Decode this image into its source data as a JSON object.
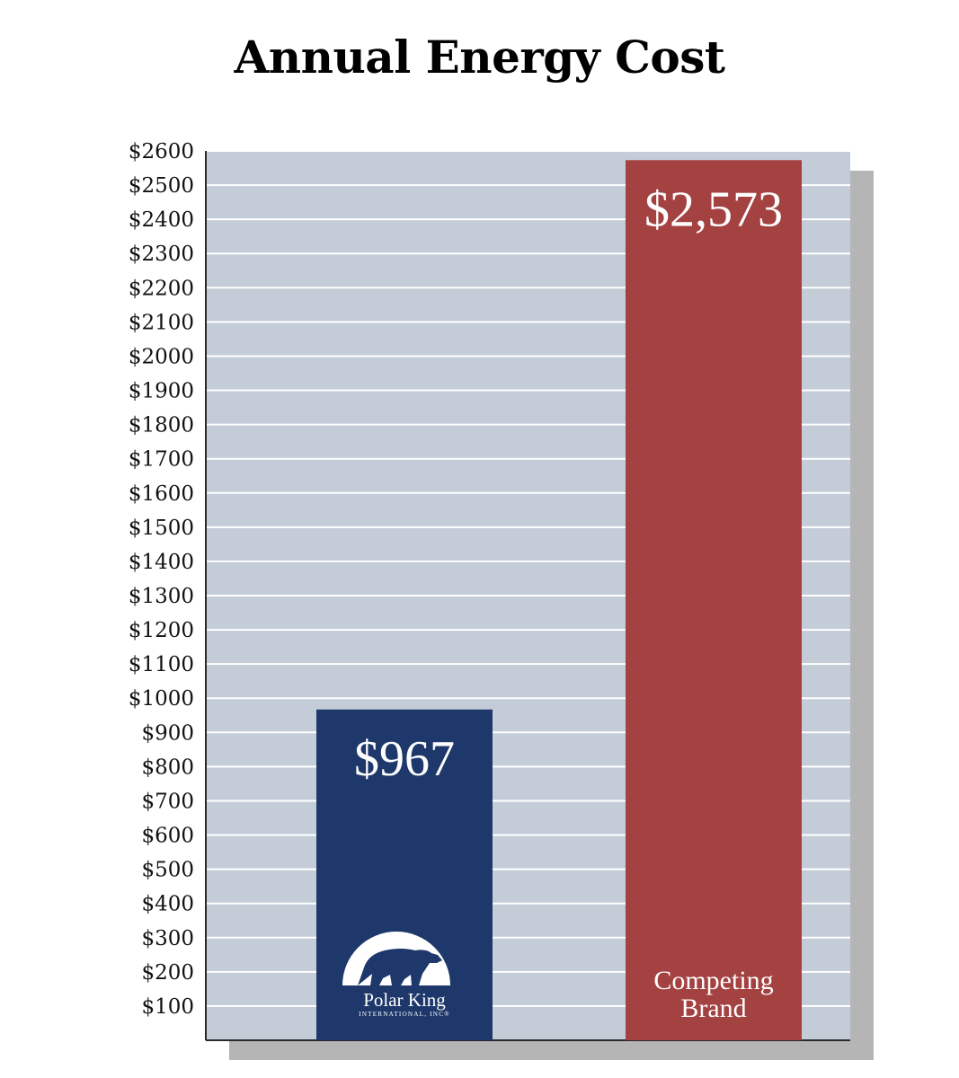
{
  "chart_data": {
    "type": "bar",
    "title": "Annual Energy Cost",
    "xlabel": "",
    "ylabel": "",
    "ylim": [
      0,
      2600
    ],
    "grid": true,
    "yticks": [
      {
        "value": 100,
        "label": "$100"
      },
      {
        "value": 200,
        "label": "$200"
      },
      {
        "value": 300,
        "label": "$300"
      },
      {
        "value": 400,
        "label": "$400"
      },
      {
        "value": 500,
        "label": "$500"
      },
      {
        "value": 600,
        "label": "$600"
      },
      {
        "value": 700,
        "label": "$700"
      },
      {
        "value": 800,
        "label": "$800"
      },
      {
        "value": 900,
        "label": "$900"
      },
      {
        "value": 1000,
        "label": "$1000"
      },
      {
        "value": 1100,
        "label": "$1100"
      },
      {
        "value": 1200,
        "label": "$1200"
      },
      {
        "value": 1300,
        "label": "$1300"
      },
      {
        "value": 1400,
        "label": "$1400"
      },
      {
        "value": 1500,
        "label": "$1500"
      },
      {
        "value": 1600,
        "label": "$1600"
      },
      {
        "value": 1700,
        "label": "$1700"
      },
      {
        "value": 1800,
        "label": "$1800"
      },
      {
        "value": 1900,
        "label": "$1900"
      },
      {
        "value": 2000,
        "label": "$2000"
      },
      {
        "value": 2100,
        "label": "$2100"
      },
      {
        "value": 2200,
        "label": "$2200"
      },
      {
        "value": 2300,
        "label": "$2300"
      },
      {
        "value": 2400,
        "label": "$2400"
      },
      {
        "value": 2500,
        "label": "$2500"
      },
      {
        "value": 2600,
        "label": "$2600"
      }
    ],
    "bars": [
      {
        "key": "polar-king",
        "value": 967,
        "value_label": "$967",
        "color": "#1e386b",
        "logo": {
          "icon": "polar-bear-logo-icon",
          "name": "Polar King",
          "sub": "INTERNATIONAL, INC®"
        }
      },
      {
        "key": "competing-brand",
        "value": 2573,
        "value_label": "$2,573",
        "color": "#a44141",
        "caption_lines": [
          "Competing",
          "Brand"
        ]
      }
    ],
    "colors": {
      "plot_background": "#c3ccd7",
      "gridline": "#ffffff",
      "shadow": "#b5b5b5",
      "axis": "#2a2a2a"
    }
  }
}
